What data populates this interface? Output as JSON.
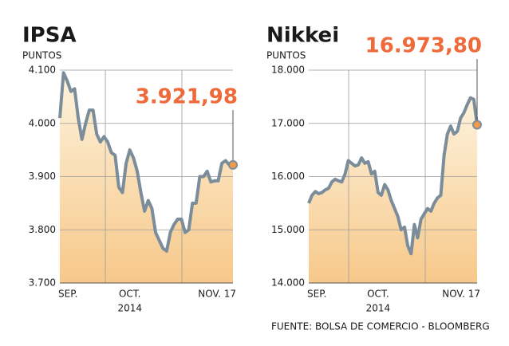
{
  "chart_data": [
    {
      "type": "line",
      "title": "IPSA",
      "y_label": "PUNTOS",
      "color": "#7b8c9b",
      "ylim": [
        3700,
        4100
      ],
      "yticks": [
        {
          "value": 3700,
          "label": "3.700"
        },
        {
          "value": 3800,
          "label": "3.800"
        },
        {
          "value": 3900,
          "label": "3.900"
        },
        {
          "value": 4000,
          "label": "4.000"
        },
        {
          "value": 4100,
          "label": "4.100"
        }
      ],
      "grid": true,
      "year": "2014",
      "categories": [
        "SEP.",
        null,
        null,
        null,
        null,
        null,
        null,
        null,
        null,
        null,
        null,
        null,
        null,
        null,
        null,
        null,
        null,
        null,
        null,
        "OCT.",
        null,
        null,
        null,
        null,
        null,
        null,
        null,
        null,
        null,
        null,
        null,
        null,
        null,
        null,
        null,
        null,
        null,
        null,
        null,
        null,
        null,
        null,
        null,
        null,
        null,
        null,
        null,
        "NOV. 17"
      ],
      "values": [
        4010,
        4095,
        4080,
        4060,
        4065,
        4010,
        3970,
        4000,
        4025,
        4025,
        3980,
        3965,
        3975,
        3965,
        3945,
        3940,
        3880,
        3870,
        3925,
        3950,
        3935,
        3910,
        3870,
        3835,
        3855,
        3840,
        3795,
        3780,
        3765,
        3760,
        3795,
        3810,
        3820,
        3820,
        3795,
        3800,
        3850,
        3850,
        3900,
        3900,
        3910,
        3890,
        3892,
        3892,
        3925,
        3930,
        3922,
        3921.98
      ],
      "value_labels": [
        null,
        null,
        null,
        null,
        null,
        null,
        null,
        null,
        null,
        null,
        null,
        null,
        null,
        null,
        null,
        null,
        null,
        null,
        null,
        null,
        null,
        null,
        null,
        null,
        null,
        null,
        null,
        null,
        null,
        null,
        null,
        null,
        null,
        null,
        null,
        null,
        null,
        null,
        null,
        null,
        null,
        null,
        null,
        null,
        null,
        null,
        null,
        "3.921,98"
      ]
    },
    {
      "type": "line",
      "title": "Nikkei",
      "y_label": "PUNTOS",
      "color": "#7b8c9b",
      "ylim": [
        14000,
        18000
      ],
      "yticks": [
        {
          "value": 14000,
          "label": "14.000"
        },
        {
          "value": 15000,
          "label": "15.000"
        },
        {
          "value": 16000,
          "label": "16.000"
        },
        {
          "value": 17000,
          "label": "17.000"
        },
        {
          "value": 18000,
          "label": "18.000"
        }
      ],
      "grid": true,
      "year": "2014",
      "categories": [
        "SEP.",
        null,
        null,
        null,
        null,
        null,
        null,
        null,
        null,
        null,
        null,
        null,
        null,
        null,
        null,
        null,
        null,
        null,
        null,
        null,
        null,
        "OCT.",
        null,
        null,
        null,
        null,
        null,
        null,
        null,
        null,
        null,
        null,
        null,
        null,
        null,
        null,
        null,
        null,
        null,
        null,
        null,
        null,
        null,
        null,
        null,
        null,
        null,
        null,
        null,
        null,
        null,
        "NOV. 17"
      ],
      "values": [
        15500,
        15650,
        15720,
        15680,
        15700,
        15750,
        15780,
        15900,
        15950,
        15920,
        15900,
        16050,
        16300,
        16250,
        16200,
        16220,
        16350,
        16250,
        16280,
        16050,
        16100,
        15700,
        15650,
        15850,
        15750,
        15550,
        15400,
        15250,
        15000,
        15050,
        14700,
        14550,
        15100,
        14850,
        15200,
        15300,
        15400,
        15350,
        15500,
        15600,
        15650,
        16400,
        16800,
        16950,
        16800,
        16850,
        17100,
        17200,
        17350,
        17480,
        17450,
        16973.8
      ],
      "value_labels": [
        null,
        null,
        null,
        null,
        null,
        null,
        null,
        null,
        null,
        null,
        null,
        null,
        null,
        null,
        null,
        null,
        null,
        null,
        null,
        null,
        null,
        null,
        null,
        null,
        null,
        null,
        null,
        null,
        null,
        null,
        null,
        null,
        null,
        null,
        null,
        null,
        null,
        null,
        null,
        null,
        null,
        null,
        null,
        null,
        null,
        null,
        null,
        null,
        null,
        null,
        null,
        "16.973,80"
      ]
    }
  ],
  "source": "FUENTE: BOLSA DE COMERCIO - BLOOMBERG"
}
